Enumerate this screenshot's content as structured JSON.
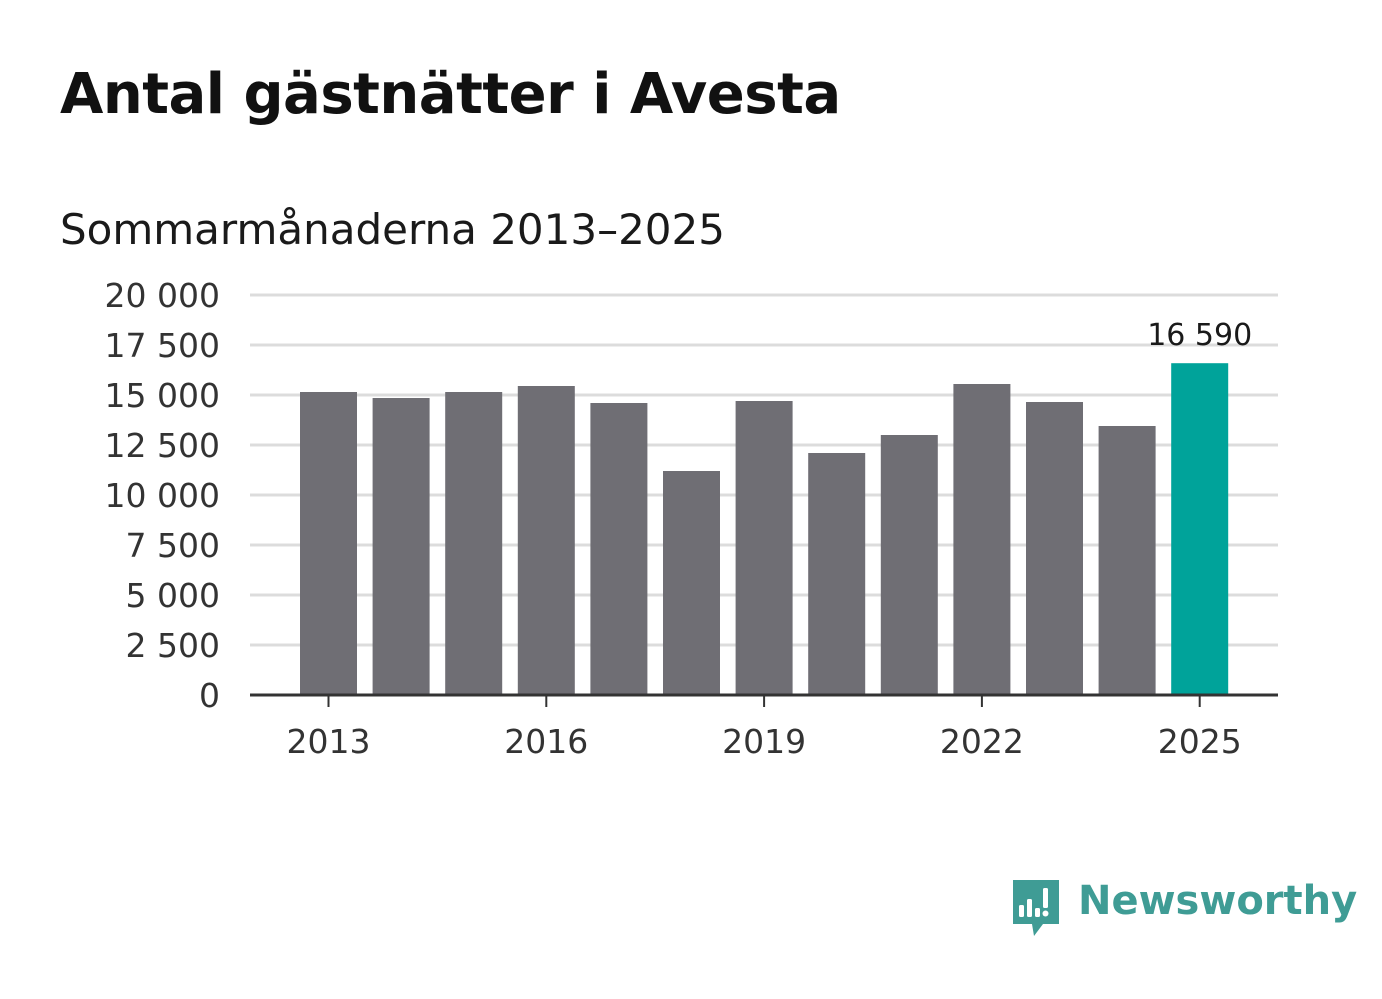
{
  "header": {
    "title": "Antal gästnätter i Avesta",
    "subtitle": "Sommarmånaderna 2013–2025"
  },
  "chart_data": {
    "type": "bar",
    "categories": [
      "2013",
      "2014",
      "2015",
      "2016",
      "2017",
      "2018",
      "2019",
      "2020",
      "2021",
      "2022",
      "2023",
      "2024",
      "2025"
    ],
    "values": [
      15150,
      14850,
      15150,
      15450,
      14600,
      11200,
      14700,
      12100,
      13000,
      15550,
      14650,
      13450,
      16590
    ],
    "highlight_index": 12,
    "highlight_label": "16 590",
    "ylim": [
      0,
      20000
    ],
    "yticks": [
      0,
      2500,
      5000,
      7500,
      10000,
      12500,
      15000,
      17500,
      20000
    ],
    "ytick_labels": [
      "0",
      "2 500",
      "5 000",
      "7 500",
      "10 000",
      "12 500",
      "15 000",
      "17 500",
      "20 000"
    ],
    "xtick_labels": [
      "2013",
      "2016",
      "2019",
      "2022",
      "2025"
    ],
    "xtick_indices": [
      0,
      3,
      6,
      9,
      12
    ],
    "grid": true,
    "colors": {
      "bar": "#6f6e74",
      "highlight": "#00a39a",
      "grid": "#dcdcdc",
      "axis": "#333333"
    }
  },
  "brand": {
    "name": "Newsworthy",
    "icon": "newsworthy-logo-icon",
    "color": "#3f9c95"
  }
}
